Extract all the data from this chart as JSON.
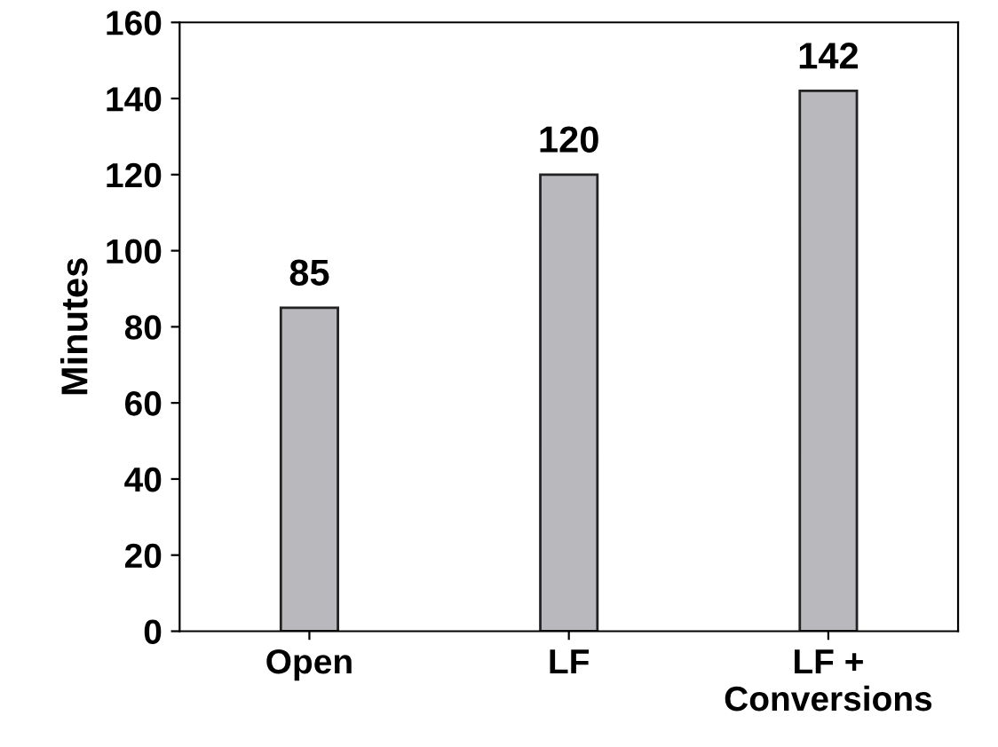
{
  "chart_data": {
    "type": "bar",
    "ylabel": "Minutes",
    "categories": [
      "Open",
      "LF",
      "LF +\nConversions"
    ],
    "values": [
      85,
      120,
      142
    ],
    "color": "#b8b8bd",
    "ylim": [
      0,
      160
    ],
    "yticks": [
      0,
      20,
      40,
      60,
      80,
      100,
      120,
      140,
      160
    ],
    "data_labels": true,
    "grid": false,
    "legend": false
  }
}
